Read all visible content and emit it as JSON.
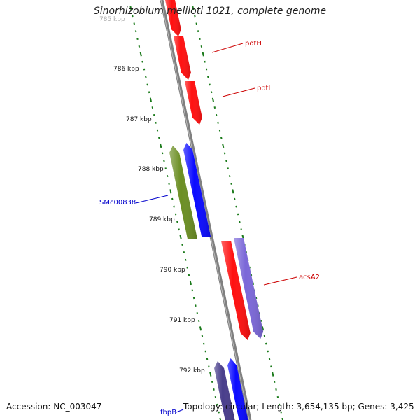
{
  "title": "Sinorhizobium meliloti 1021, complete genome",
  "footer": {
    "accession": "Accession: NC_003047",
    "stats": "Topology: circular; Length: 3,654,135 bp; Genes: 3,425"
  },
  "kbp_ticks": [
    "785 kbp",
    "786 kbp",
    "787 kbp",
    "788 kbp",
    "789 kbp",
    "790 kbp",
    "791 kbp",
    "792 kbp"
  ],
  "genes": [
    {
      "label": "potH",
      "color": "#ff0000",
      "strand": "forward"
    },
    {
      "label": "potI",
      "color": "#ff0000",
      "strand": "forward"
    },
    {
      "label": "SMc00838",
      "color": "#0000cc",
      "strand": "reverse"
    },
    {
      "label": "acsA2",
      "color": "#cc0000",
      "strand": "forward"
    },
    {
      "label": "fbpB",
      "color": "#0000cc",
      "strand": "reverse"
    }
  ],
  "colors": {
    "backbone": "#808080",
    "tick": "#1a7a1a",
    "red": "#ff1010",
    "blue": "#0a0aff",
    "olive": "#6b8e23",
    "lavender": "#7b68d8",
    "navy": "#483d8b"
  }
}
